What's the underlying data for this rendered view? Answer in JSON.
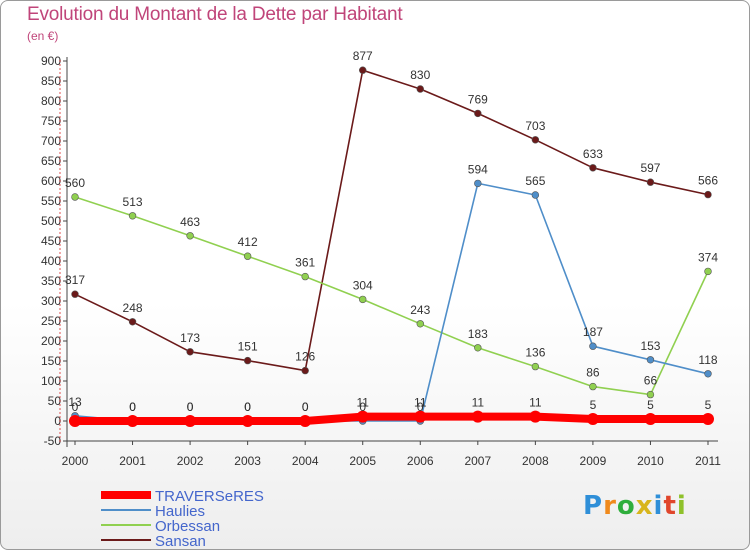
{
  "chart_data": {
    "type": "line",
    "title": "Evolution du Montant de la Dette par Habitant",
    "subtitle": "(en €)",
    "x": [
      "2000",
      "2001",
      "2002",
      "2003",
      "2004",
      "2005",
      "2006",
      "2007",
      "2008",
      "2009",
      "2010",
      "2011"
    ],
    "ylim": [
      -50,
      900
    ],
    "yticks": [
      -50,
      0,
      50,
      100,
      150,
      200,
      250,
      300,
      350,
      400,
      450,
      500,
      550,
      600,
      650,
      700,
      750,
      800,
      850,
      900
    ],
    "grid": false,
    "legend_position": "bottom-left",
    "series": [
      {
        "name": "TRAVERSeRES",
        "color": "#ff0000",
        "values": [
          0,
          0,
          0,
          0,
          0,
          11,
          11,
          11,
          11,
          5,
          5,
          5
        ],
        "labels": [
          "0",
          "0",
          "0",
          "0",
          "0",
          "11",
          "11",
          "11",
          "11",
          "5",
          "5",
          "5"
        ]
      },
      {
        "name": "Haulies",
        "color": "#4f8ec9",
        "values": [
          13,
          0,
          0,
          0,
          0,
          0,
          0,
          594,
          565,
          187,
          153,
          118
        ],
        "labels": [
          "13",
          "0",
          "0",
          "0",
          "0",
          "0",
          "0",
          "594",
          "565",
          "187",
          "153",
          "118"
        ]
      },
      {
        "name": "Orbessan",
        "color": "#90d050",
        "values": [
          560,
          513,
          463,
          412,
          361,
          304,
          243,
          183,
          136,
          86,
          66,
          374
        ],
        "labels": [
          "560",
          "513",
          "463",
          "412",
          "361",
          "304",
          "243",
          "183",
          "136",
          "86",
          "66",
          "374"
        ]
      },
      {
        "name": "Sansan",
        "color": "#6b1a1a",
        "values": [
          317,
          248,
          173,
          151,
          126,
          877,
          830,
          769,
          703,
          633,
          597,
          566
        ],
        "labels": [
          "317",
          "248",
          "173",
          "151",
          "126",
          "877",
          "830",
          "769",
          "703",
          "633",
          "597",
          "566"
        ]
      }
    ]
  },
  "logo": {
    "letters": [
      "P",
      "r",
      "o",
      "x",
      "i",
      "t",
      "i"
    ]
  }
}
